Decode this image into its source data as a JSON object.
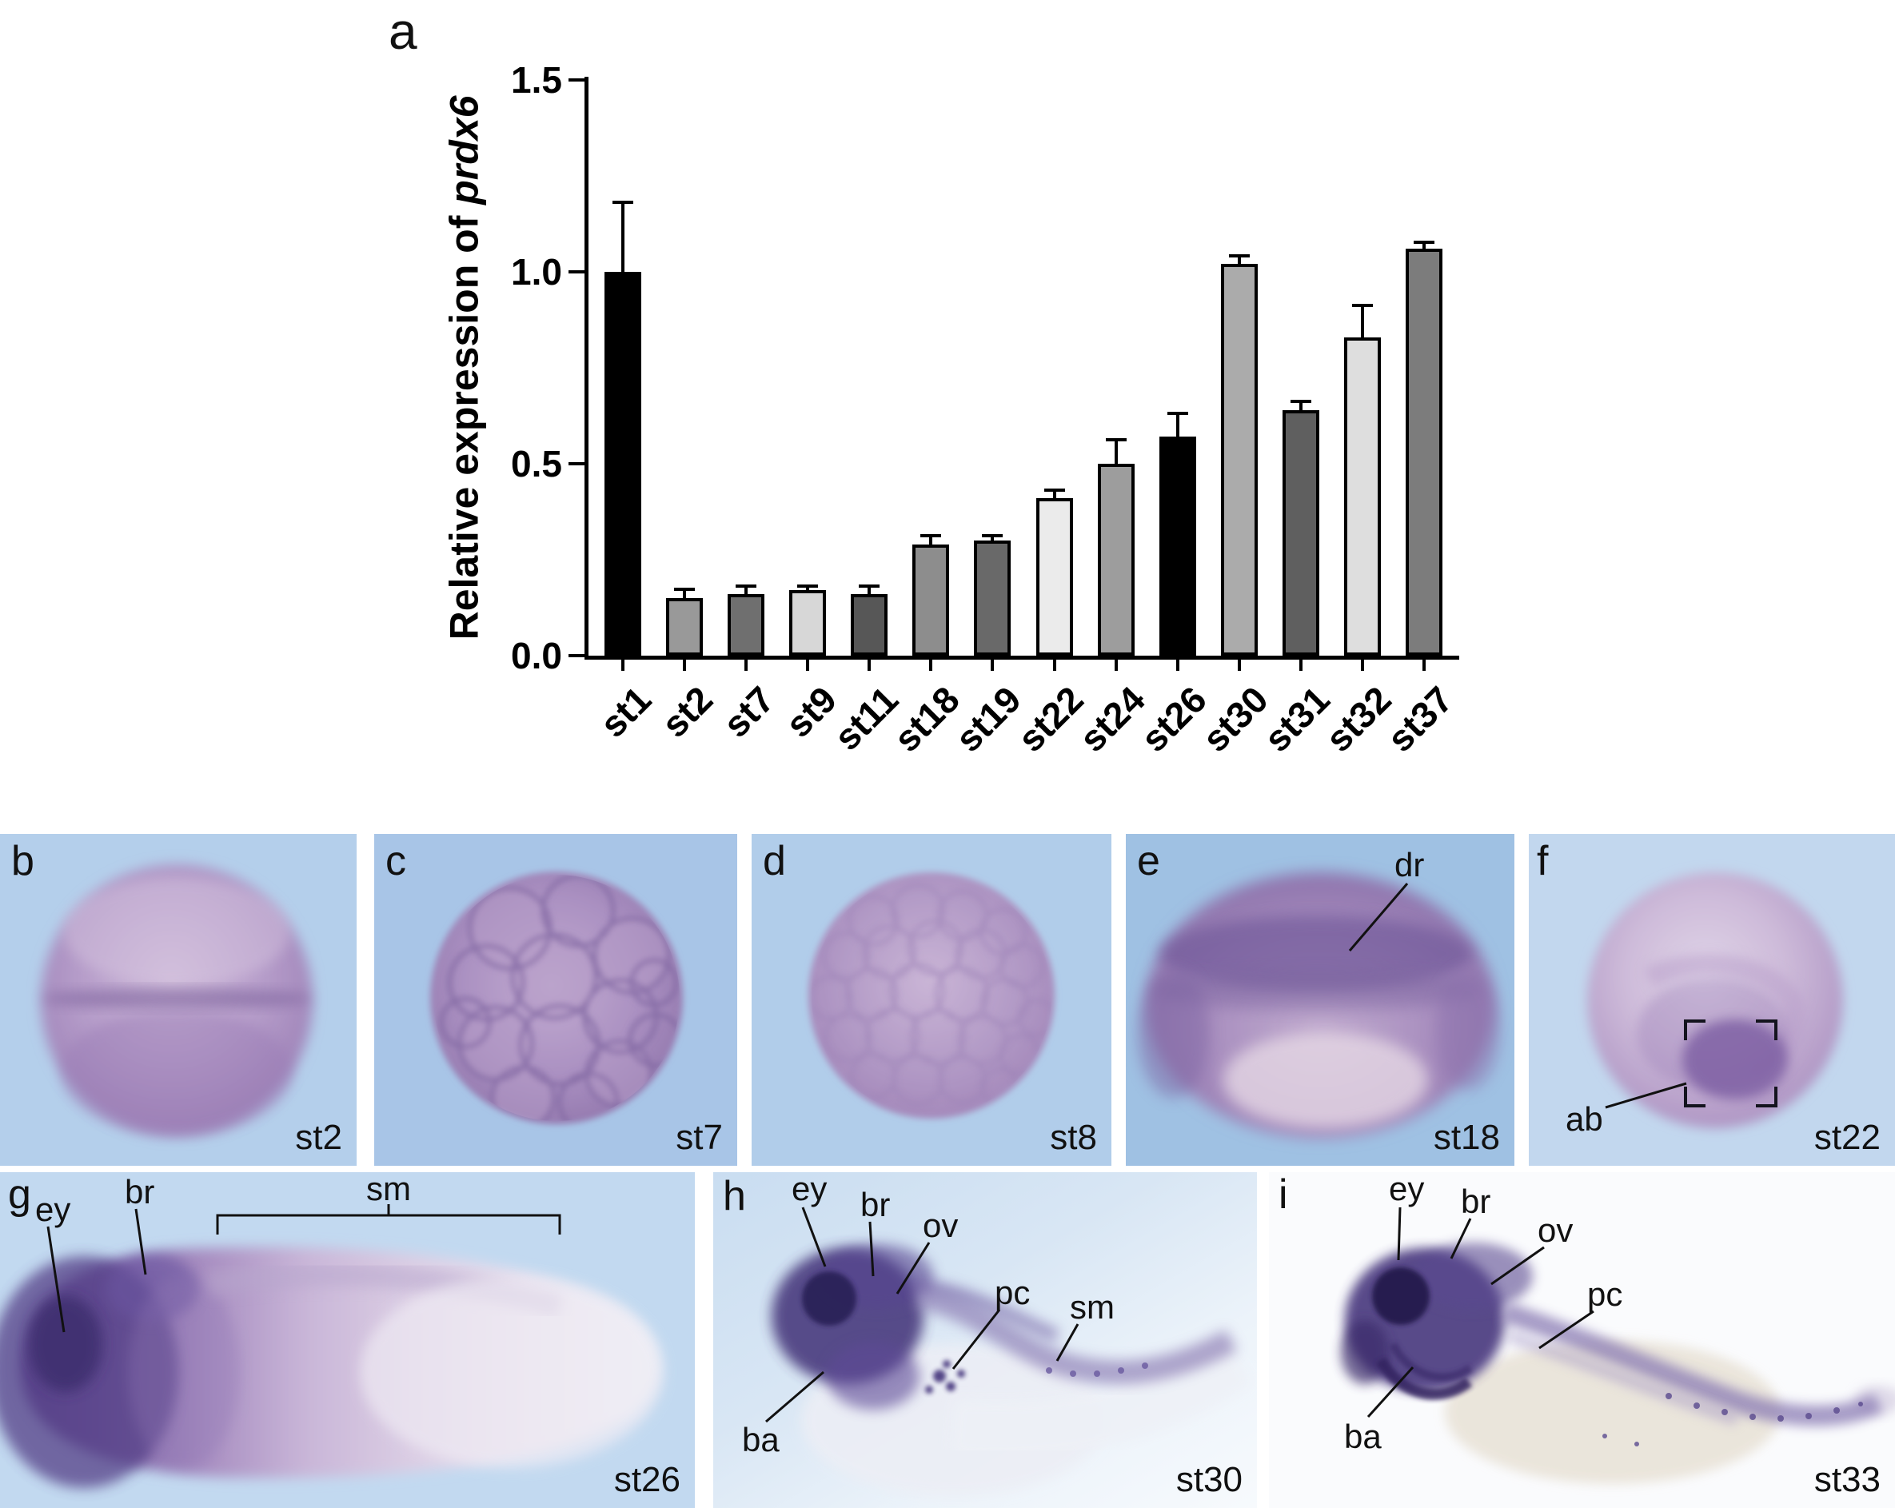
{
  "colors": {
    "panel_background_blue": "#aecbe9",
    "embryo_stain_purple": "#9b7fb8",
    "axis_color": "#000000"
  },
  "panel_labels": {
    "a": "a",
    "b": "b",
    "c": "c",
    "d": "d",
    "e": "e",
    "f": "f",
    "g": "g",
    "h": "h",
    "i": "i"
  },
  "stages": {
    "b": "st2",
    "c": "st7",
    "d": "st8",
    "e": "st18",
    "f": "st22",
    "g": "st26",
    "h": "st30",
    "i": "st33"
  },
  "annotations": {
    "e": {
      "dr": "dr"
    },
    "f": {
      "ab": "ab"
    },
    "g": {
      "ey": "ey",
      "br": "br",
      "sm": "sm"
    },
    "h": {
      "ey": "ey",
      "br": "br",
      "ov": "ov",
      "pc": "pc",
      "sm": "sm",
      "ba": "ba"
    },
    "i": {
      "ey": "ey",
      "br": "br",
      "ov": "ov",
      "pc": "pc",
      "ba": "ba"
    }
  },
  "chart_data": {
    "type": "bar",
    "title": "",
    "ylabel_regular": "Relative expression of ",
    "ylabel_italic": "prdx6",
    "xlabel": "",
    "categories": [
      "st1",
      "st2",
      "st7",
      "st9",
      "st11",
      "st18",
      "st19",
      "st22",
      "st24",
      "st26",
      "st30",
      "st31",
      "st32",
      "st37"
    ],
    "values": [
      1.0,
      0.15,
      0.16,
      0.17,
      0.16,
      0.29,
      0.3,
      0.41,
      0.5,
      0.57,
      1.02,
      0.64,
      0.83,
      1.06
    ],
    "errors_upper": [
      0.18,
      0.02,
      0.02,
      0.01,
      0.02,
      0.02,
      0.01,
      0.02,
      0.06,
      0.06,
      0.02,
      0.02,
      0.08,
      0.015
    ],
    "bar_colors": [
      "#000000",
      "#999999",
      "#6f6f6f",
      "#d7d7d7",
      "#575757",
      "#8d8d8d",
      "#696969",
      "#ebebeb",
      "#9d9d9d",
      "#000000",
      "#ababab",
      "#5f5f5f",
      "#dedede",
      "#7c7c7c"
    ],
    "bar_edge_color": "#000000",
    "ylim": [
      0,
      1.5
    ],
    "yticks": [
      "0.0",
      "0.5",
      "1.0",
      "1.5"
    ],
    "grid": false,
    "legend": null,
    "error_bars": "upper SD"
  }
}
